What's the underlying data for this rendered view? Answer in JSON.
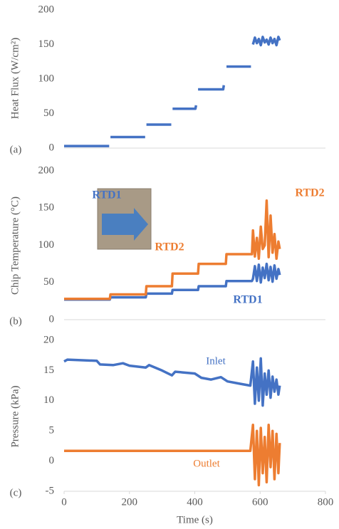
{
  "chart_data": [
    {
      "type": "line",
      "ylabel": "Heat Flux (W/cm²)",
      "panel_label": "(a)",
      "color": "#4472c4",
      "x": [
        0,
        138,
        139,
        142,
        248,
        250,
        252,
        328,
        330,
        332,
        402,
        404,
        406,
        410,
        487,
        489,
        491,
        497,
        572,
        574,
        578,
        584,
        590,
        596,
        602,
        608,
        614,
        620,
        626,
        632,
        638,
        644,
        650,
        656,
        660
      ],
      "values": [
        3,
        3,
        null,
        16,
        16,
        null,
        34,
        34,
        null,
        57,
        57,
        62,
        null,
        85,
        85,
        91,
        null,
        118,
        118,
        null,
        150,
        160,
        152,
        158,
        149,
        161,
        153,
        157,
        150,
        160,
        152,
        158,
        149,
        161,
        156
      ],
      "xlim": [
        0,
        800
      ],
      "ylim": [
        0,
        200
      ],
      "yticks": [
        0,
        50,
        100,
        150,
        200
      ]
    },
    {
      "type": "line",
      "ylabel": "Chip Temperature (°C)",
      "panel_label": "(b)",
      "x": [
        0,
        140,
        142,
        250,
        252,
        330,
        332,
        410,
        412,
        495,
        497,
        575,
        578,
        584,
        590,
        596,
        602,
        608,
        614,
        620,
        626,
        632,
        638,
        644,
        650,
        656,
        660
      ],
      "series": [
        {
          "name": "RTD1",
          "color": "#4472c4",
          "values": [
            27,
            27,
            30,
            30,
            35,
            35,
            40,
            40,
            45,
            45,
            52,
            52,
            55,
            72,
            52,
            74,
            50,
            70,
            56,
            75,
            53,
            71,
            51,
            73,
            55,
            68,
            60
          ]
        },
        {
          "name": "RTD2",
          "color": "#ed7d31",
          "values": [
            28,
            28,
            34,
            34,
            45,
            45,
            62,
            62,
            75,
            75,
            88,
            88,
            120,
            85,
            110,
            82,
            125,
            95,
            100,
            160,
            84,
            140,
            90,
            115,
            82,
            105,
            95
          ]
        }
      ],
      "xlim": [
        0,
        800
      ],
      "ylim": [
        0,
        200
      ],
      "yticks": [
        0,
        50,
        100,
        150,
        200
      ]
    },
    {
      "type": "line",
      "ylabel": "Pressure (kPa)",
      "panel_label": "(c)",
      "xlabel": "Time (s)",
      "x": [
        0,
        10,
        100,
        110,
        150,
        180,
        200,
        250,
        260,
        300,
        330,
        340,
        400,
        420,
        450,
        480,
        500,
        540,
        570,
        578,
        584,
        590,
        596,
        602,
        608,
        614,
        620,
        626,
        632,
        638,
        644,
        650,
        656,
        660
      ],
      "series": [
        {
          "name": "Inlet",
          "color": "#4472c4",
          "values": [
            16.5,
            16.8,
            16.6,
            16,
            15.9,
            16.2,
            15.8,
            15.5,
            15.9,
            15,
            14.2,
            14.8,
            14.5,
            13.8,
            13.5,
            13.9,
            13.2,
            12.8,
            12.5,
            16.5,
            9.5,
            15.5,
            10,
            17,
            9.2,
            14.5,
            11,
            15,
            10.5,
            14,
            11.5,
            13.5,
            11,
            12.5
          ]
        },
        {
          "name": "Outlet",
          "color": "#ed7d31",
          "values": [
            1.7,
            1.7,
            1.7,
            1.7,
            1.7,
            1.7,
            1.7,
            1.7,
            1.7,
            1.7,
            1.7,
            1.7,
            1.7,
            1.7,
            1.7,
            1.7,
            1.7,
            1.7,
            1.7,
            6,
            -3,
            5,
            -4,
            5.5,
            -2,
            4,
            -3.5,
            6,
            -1,
            5,
            -3,
            4.5,
            -2,
            3
          ]
        }
      ],
      "xlim": [
        0,
        800
      ],
      "xticks": [
        0,
        200,
        400,
        600,
        800
      ],
      "ylim": [
        -5,
        20
      ],
      "yticks": [
        -5,
        0,
        5,
        10,
        15,
        20
      ]
    }
  ]
}
